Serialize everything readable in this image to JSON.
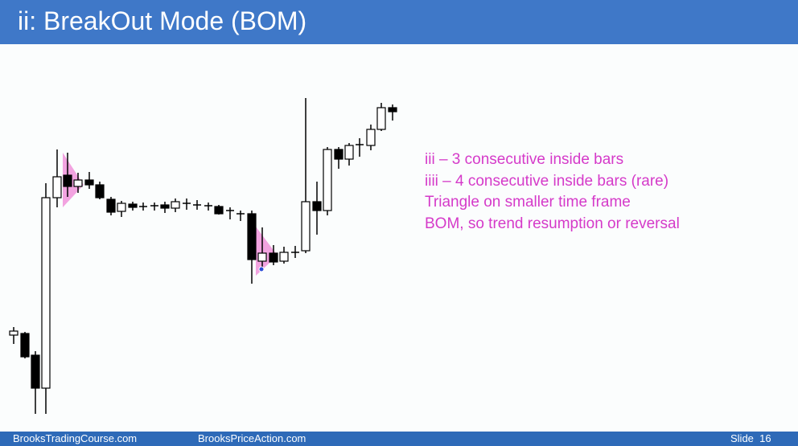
{
  "header": {
    "title": "ii: BreakOut Mode (BOM)"
  },
  "notes": [
    "iii – 3 consecutive inside bars",
    "iiii – 4 consecutive inside bars (rare)",
    "Triangle on smaller time frame",
    "BOM, so trend resumption or reversal"
  ],
  "footer": {
    "left": "BrooksTradingCourse.com",
    "center": "BrooksPriceAction.com",
    "slide": "Slide  16"
  }
}
